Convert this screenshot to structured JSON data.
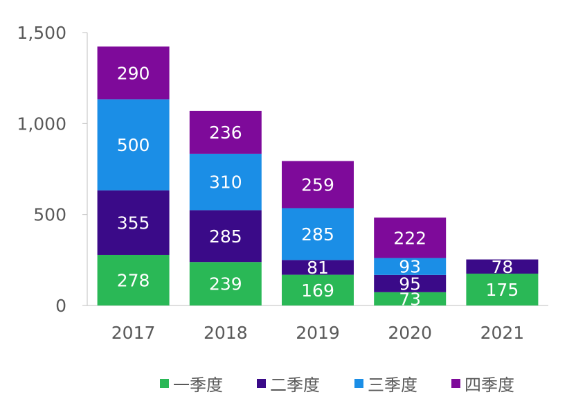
{
  "chart_data": {
    "type": "bar",
    "stacked": true,
    "categories": [
      "2017",
      "2018",
      "2019",
      "2020",
      "2021"
    ],
    "series": [
      {
        "name": "一季度",
        "color": "#2ab856",
        "values": [
          278,
          239,
          169,
          73,
          175
        ]
      },
      {
        "name": "二季度",
        "color": "#3a0a88",
        "values": [
          355,
          285,
          81,
          95,
          78
        ]
      },
      {
        "name": "三季度",
        "color": "#1b8ee6",
        "values": [
          500,
          310,
          285,
          93,
          null
        ]
      },
      {
        "name": "四季度",
        "color": "#7e0a9a",
        "values": [
          290,
          236,
          259,
          222,
          null
        ]
      }
    ],
    "ylim": [
      0,
      1500
    ],
    "yticks": [
      0,
      500,
      1000,
      1500
    ],
    "ytick_labels": [
      "0",
      "500",
      "1,000",
      "1,500"
    ],
    "title": "",
    "xlabel": "",
    "ylabel": "",
    "legend_position": "bottom",
    "grid": false
  }
}
